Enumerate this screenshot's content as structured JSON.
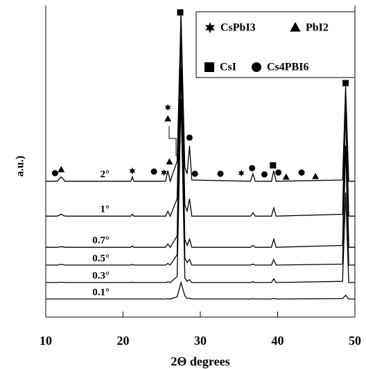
{
  "chart_data": {
    "type": "line",
    "xlabel": "2Θ degrees",
    "ylabel": "a.u.)",
    "xlim": [
      10,
      50
    ],
    "ylim": [
      0,
      100
    ],
    "xticks": [
      10,
      20,
      30,
      40,
      50
    ],
    "color": "#000000",
    "x": [
      10,
      11.5,
      12,
      12.5,
      21,
      21.2,
      21.4,
      25.5,
      25.8,
      26.1,
      27.0,
      27.5,
      28.0,
      28.3,
      28.6,
      28.9,
      36.5,
      36.8,
      37.1,
      39.2,
      39.5,
      39.8,
      48.4,
      48.8,
      49.2,
      50
    ],
    "series": [
      {
        "name": "2°",
        "values": [
          43.6,
          43.6,
          45,
          43.6,
          43.6,
          45,
          43.6,
          43.6,
          47,
          43.6,
          50,
          97,
          48,
          46,
          55,
          44,
          43.6,
          46,
          43.6,
          43.6,
          47,
          43.6,
          44,
          74,
          43.6,
          43.6
        ]
      },
      {
        "name": "1°",
        "values": [
          32.4,
          32.4,
          33,
          32.4,
          32.4,
          33,
          32.4,
          32.4,
          34,
          32.4,
          38,
          97,
          36,
          34,
          38,
          32.4,
          32.4,
          33.5,
          32.4,
          32.4,
          35,
          32.4,
          33,
          72,
          32.4,
          32.4
        ]
      },
      {
        "name": "0.7°",
        "values": [
          22.4,
          22.4,
          22.6,
          22.4,
          22.4,
          22.8,
          22.4,
          22.4,
          23.5,
          22.4,
          26,
          90,
          25,
          23,
          25,
          22.4,
          22.4,
          23,
          22.4,
          22.4,
          25,
          22.4,
          23,
          68,
          22.4,
          22.4
        ]
      },
      {
        "name": "0.5°",
        "values": [
          16.7,
          16.7,
          16.9,
          16.7,
          16.7,
          16.9,
          16.7,
          16.7,
          17.2,
          16.7,
          20,
          80,
          19,
          17.5,
          18.5,
          16.7,
          16.7,
          17,
          16.7,
          16.7,
          18.5,
          16.7,
          17,
          55,
          16.7,
          16.7
        ]
      },
      {
        "name": "0.3°",
        "values": [
          11.1,
          11.1,
          11.2,
          11.1,
          11.1,
          11.2,
          11.1,
          11.1,
          11.3,
          11.1,
          13,
          70,
          12.5,
          11.5,
          12,
          11.1,
          11.1,
          11.3,
          11.1,
          11.1,
          12.3,
          11.1,
          11.5,
          40,
          11.1,
          11.1
        ]
      },
      {
        "name": "0.1°",
        "values": [
          5.8,
          5.8,
          5.8,
          5.8,
          5.8,
          5.8,
          5.8,
          5.8,
          5.9,
          5.8,
          6.5,
          11.1,
          6.8,
          6,
          6,
          5.8,
          5.8,
          5.9,
          5.8,
          5.8,
          6,
          5.8,
          5.9,
          7,
          5.8,
          5.8
        ]
      }
    ],
    "markers": [
      {
        "x": 11.2,
        "y": 46.2,
        "symbol": "circle"
      },
      {
        "x": 12,
        "y": 47.3,
        "symbol": "triangle"
      },
      {
        "x": 21.2,
        "y": 46.9,
        "symbol": "star"
      },
      {
        "x": 24,
        "y": 46.7,
        "symbol": "circle"
      },
      {
        "x": 25.3,
        "y": 46.4,
        "symbol": "star"
      },
      {
        "x": 26,
        "y": 49.8,
        "symbol": "triangle"
      },
      {
        "x": 25.8,
        "y": 67.3,
        "symbol": "star"
      },
      {
        "x": 25.8,
        "y": 63.6,
        "symbol": "triangle"
      },
      {
        "x": 27.4,
        "y": 97.8,
        "symbol": "square"
      },
      {
        "x": 28.6,
        "y": 57.6,
        "symbol": "circle"
      },
      {
        "x": 29.3,
        "y": 46.0,
        "symbol": "circle"
      },
      {
        "x": 32.6,
        "y": 46.0,
        "symbol": "circle"
      },
      {
        "x": 35.3,
        "y": 46.2,
        "symbol": "star"
      },
      {
        "x": 36.7,
        "y": 47.8,
        "symbol": "circle"
      },
      {
        "x": 38.3,
        "y": 45.8,
        "symbol": "circle"
      },
      {
        "x": 39.4,
        "y": 48.7,
        "symbol": "square"
      },
      {
        "x": 40.1,
        "y": 46.4,
        "symbol": "circle"
      },
      {
        "x": 41.1,
        "y": 44.9,
        "symbol": "triangle"
      },
      {
        "x": 43.1,
        "y": 46.4,
        "symbol": "circle"
      },
      {
        "x": 44.9,
        "y": 45.1,
        "symbol": "triangle"
      },
      {
        "x": 48.8,
        "y": 75.1,
        "symbol": "square"
      }
    ],
    "legend": [
      {
        "symbol": "star",
        "label": "CsPbI3"
      },
      {
        "symbol": "triangle",
        "label": "PbI2"
      },
      {
        "symbol": "square",
        "label": "CsI"
      },
      {
        "symbol": "circle",
        "label": "Cs4PBI6"
      }
    ]
  }
}
